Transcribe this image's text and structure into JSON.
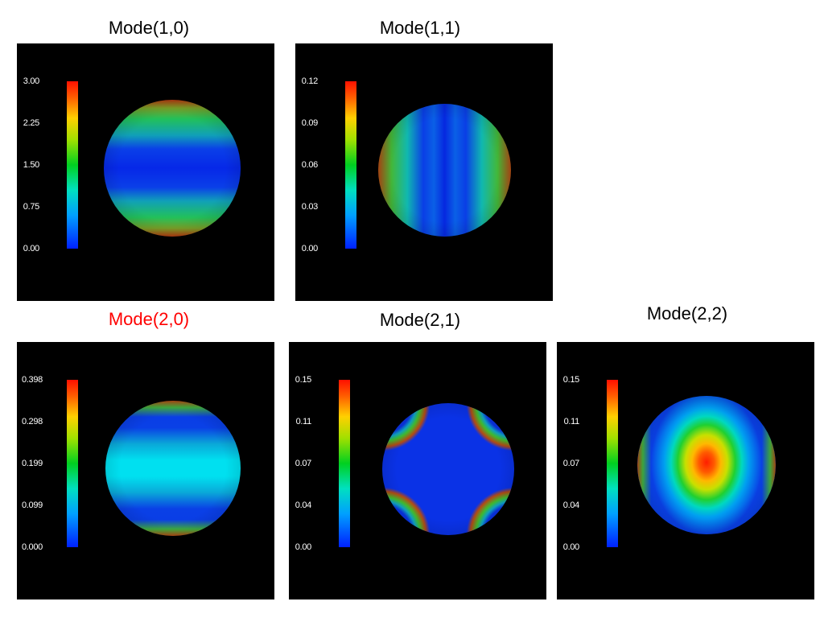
{
  "panels": [
    {
      "title": "Mode(1,0)",
      "title_color": "#000000",
      "ticks": [
        "3.00",
        "2.25",
        "1.50",
        "0.75",
        "0.00"
      ]
    },
    {
      "title": "Mode(1,1)",
      "title_color": "#000000",
      "ticks": [
        "0.12",
        "0.09",
        "0.06",
        "0.03",
        "0.00"
      ]
    },
    {
      "title": "Mode(2,0)",
      "title_color": "#ff0000",
      "ticks": [
        "0.398",
        "0.298",
        "0.199",
        "0.099",
        "0.000"
      ]
    },
    {
      "title": "Mode(2,1)",
      "title_color": "#000000",
      "ticks": [
        "0.15",
        "0.11",
        "0.07",
        "0.04",
        "0.00"
      ]
    },
    {
      "title": "Mode(2,2)",
      "title_color": "#000000",
      "ticks": [
        "0.15",
        "0.11",
        "0.07",
        "0.04",
        "0.00"
      ]
    }
  ]
}
